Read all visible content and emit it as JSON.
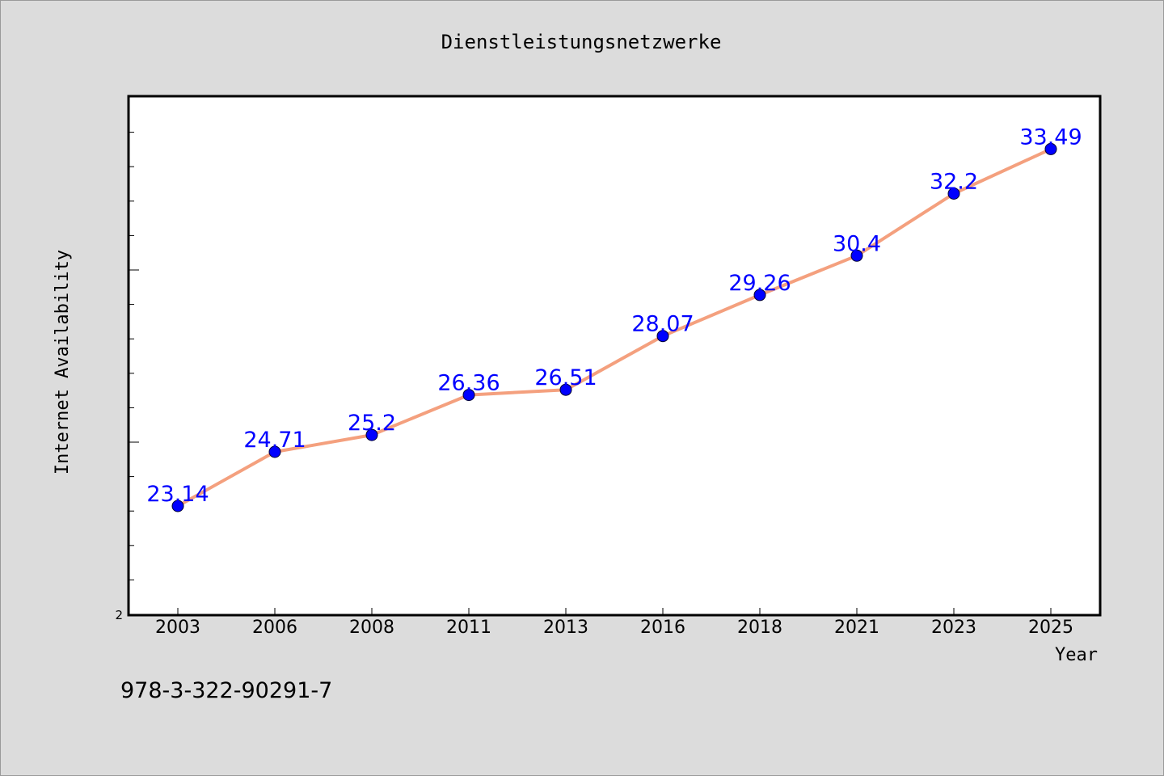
{
  "chart_data": {
    "type": "line",
    "title": "Dienstleistungsnetzwerke",
    "xlabel": "Year",
    "ylabel": "Internet Availability",
    "x": [
      "2003",
      "2006",
      "2008",
      "2011",
      "2013",
      "2016",
      "2018",
      "2021",
      "2023",
      "2025"
    ],
    "series": [
      {
        "values": [
          23.14,
          24.71,
          25.2,
          26.36,
          26.51,
          28.07,
          29.26,
          30.4,
          32.2,
          33.49
        ],
        "labels": [
          "23.14",
          "24.71",
          "25.2",
          "26.36",
          "26.51",
          "28.07",
          "29.26",
          "30.4",
          "32.2",
          "33.49"
        ]
      }
    ],
    "y_tick_labels": [
      "2"
    ],
    "ylim": [
      20,
      35
    ],
    "grid": false,
    "colors": {
      "line": "#f4a07e",
      "marker": "#0000ff",
      "data_label": "#0000ff",
      "plot_background": "#ffffff",
      "figure_background": "#dcdcdc"
    }
  },
  "footer": {
    "isbn": "978-3-322-90291-7"
  }
}
